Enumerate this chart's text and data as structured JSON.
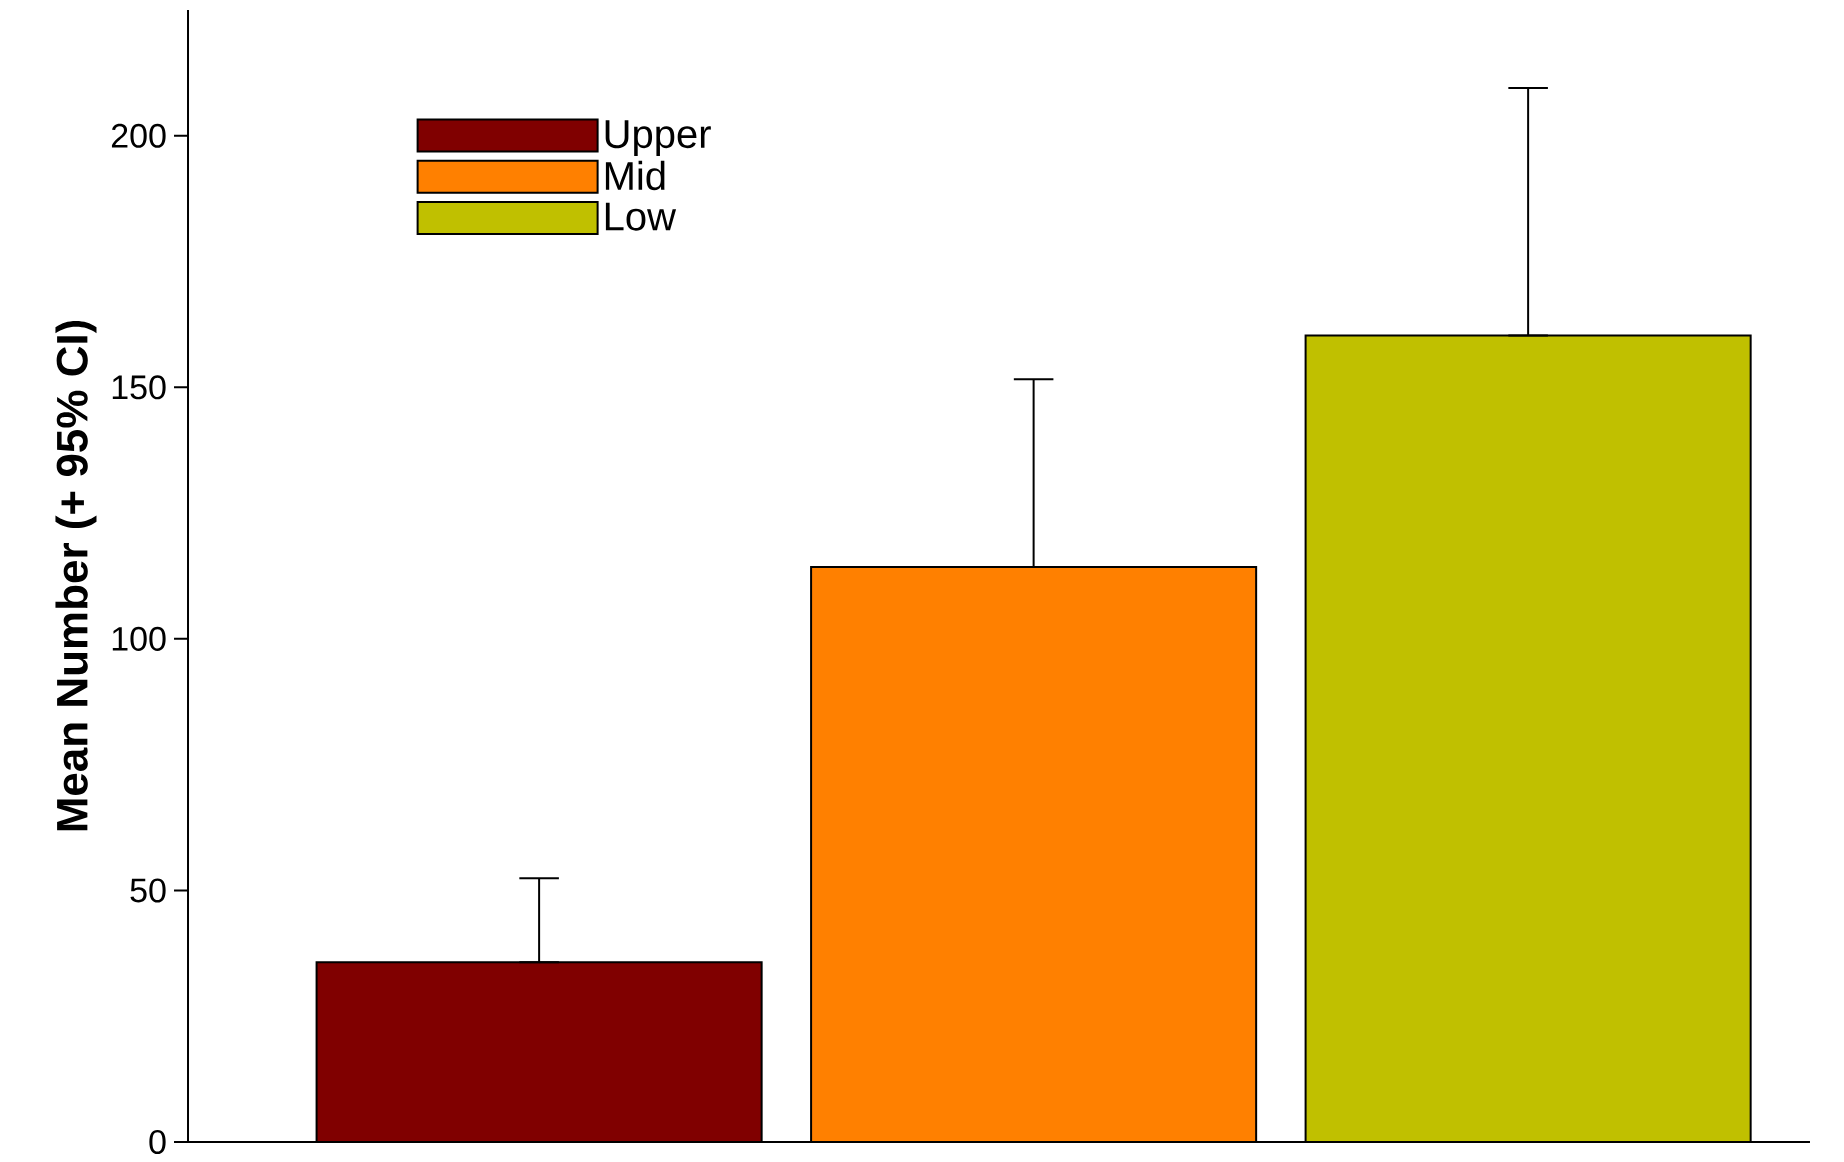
{
  "chart_data": {
    "type": "bar",
    "ylabel": "Mean Number (+ 95% CI)",
    "categories": [
      null,
      null,
      null
    ],
    "series": [
      {
        "name": "Upper",
        "color": "#800000",
        "values": [
          35.7,
          null,
          null
        ],
        "errors": [
          [
            35.7,
            52.4
          ],
          null,
          null
        ]
      },
      {
        "name": "Mid",
        "color": "#ff8000",
        "values": [
          null,
          114.3,
          null
        ],
        "errors": [
          null,
          [
            114.3,
            151.6
          ],
          null
        ]
      },
      {
        "name": "Low",
        "color": "#c0c000",
        "values": [
          null,
          null,
          160.3
        ],
        "errors": [
          null,
          null,
          [
            160.3,
            209.5
          ]
        ]
      }
    ],
    "ylim": [
      0,
      225
    ],
    "yticks": [
      0,
      50,
      100,
      150,
      200
    ],
    "legend": "top left",
    "tick_labels": "y",
    "grid": false
  }
}
